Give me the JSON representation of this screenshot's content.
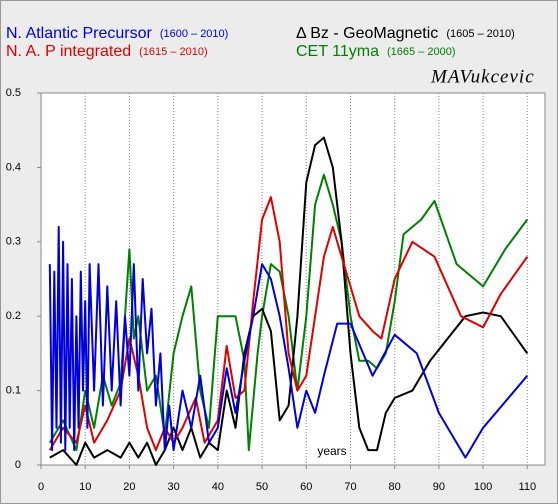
{
  "chart_data": {
    "type": "line",
    "signature": "MAVukcevic",
    "annotation": "years",
    "xlim": [
      0,
      114
    ],
    "ylim": [
      0,
      0.5
    ],
    "xticks": [
      0,
      10,
      20,
      30,
      40,
      50,
      60,
      70,
      80,
      90,
      100,
      110
    ],
    "yticks": [
      0,
      0.1,
      0.2,
      0.3,
      0.4,
      0.5
    ],
    "grid": "x",
    "series": [
      {
        "name": "N. Atlantic Precursor",
        "period": "(1600 – 2010)",
        "color": "#0000dd",
        "x": [
          2,
          2.5,
          3,
          3.5,
          4,
          4.5,
          5,
          5.5,
          6,
          6.5,
          7,
          7.5,
          8,
          8.5,
          9,
          9.5,
          10,
          10.5,
          11,
          12,
          13,
          14,
          15,
          16,
          17,
          18,
          19,
          20,
          21,
          22,
          23,
          24,
          25,
          26,
          27,
          28,
          29,
          30,
          32,
          34,
          36,
          38,
          40,
          42,
          44,
          46,
          48,
          50,
          52,
          54,
          56,
          58,
          60,
          62,
          64,
          67,
          70,
          75,
          80,
          85,
          90,
          96,
          100,
          110
        ],
        "values": [
          0.27,
          0.02,
          0.26,
          0.05,
          0.32,
          0.03,
          0.3,
          0.02,
          0.27,
          0.05,
          0.25,
          0.02,
          0.2,
          0.05,
          0.26,
          0.1,
          0.22,
          0.05,
          0.27,
          0.1,
          0.27,
          0.08,
          0.24,
          0.1,
          0.22,
          0.08,
          0.2,
          0.12,
          0.27,
          0.1,
          0.25,
          0.15,
          0.21,
          0.08,
          0.15,
          0.02,
          0.08,
          0.02,
          0.1,
          0.05,
          0.12,
          0.03,
          0.05,
          0.13,
          0.07,
          0.14,
          0.2,
          0.27,
          0.25,
          0.2,
          0.13,
          0.05,
          0.1,
          0.07,
          0.12,
          0.19,
          0.19,
          0.12,
          0.175,
          0.15,
          0.07,
          0.01,
          0.05,
          0.12
        ]
      },
      {
        "name": "N. A. P integrated",
        "period": "(1615 – 2010)",
        "color": "#e00000",
        "x": [
          2,
          5,
          8,
          10,
          12,
          15,
          18,
          20,
          22,
          24,
          26,
          28,
          30,
          32,
          35,
          37,
          40,
          42,
          44,
          46,
          48,
          50,
          52,
          54,
          56,
          58,
          60,
          62,
          64,
          66,
          68,
          70,
          72,
          75,
          77,
          80,
          84,
          89,
          95,
          100,
          104,
          110
        ],
        "values": [
          0.02,
          0.05,
          0.03,
          0.08,
          0.03,
          0.06,
          0.1,
          0.17,
          0.12,
          0.05,
          0.02,
          0.05,
          0.03,
          0.05,
          0.09,
          0.03,
          0.06,
          0.16,
          0.09,
          0.1,
          0.22,
          0.33,
          0.36,
          0.3,
          0.15,
          0.1,
          0.12,
          0.2,
          0.28,
          0.32,
          0.28,
          0.24,
          0.2,
          0.18,
          0.17,
          0.25,
          0.3,
          0.28,
          0.2,
          0.185,
          0.23,
          0.28
        ]
      },
      {
        "name": "Δ Bz - GeoMagnetic",
        "period": "(1605 – 2010)",
        "color": "#000000",
        "x": [
          2,
          5,
          8,
          10,
          12,
          15,
          18,
          20,
          22,
          24,
          26,
          28,
          30,
          32,
          34,
          36,
          38,
          40,
          42,
          44,
          46,
          48,
          50,
          52,
          54,
          56,
          58,
          60,
          62,
          64,
          66,
          68,
          70,
          72,
          74,
          76,
          78,
          80,
          84,
          88,
          92,
          96,
          100,
          104,
          110
        ],
        "values": [
          0.01,
          0.02,
          0,
          0.03,
          0.01,
          0.02,
          0.01,
          0.03,
          0.01,
          0.03,
          0,
          0.02,
          0.05,
          0.02,
          0.05,
          0.01,
          0.03,
          0.02,
          0.1,
          0.05,
          0.15,
          0.2,
          0.21,
          0.18,
          0.06,
          0.08,
          0.2,
          0.38,
          0.43,
          0.44,
          0.4,
          0.3,
          0.15,
          0.05,
          0.02,
          0.02,
          0.07,
          0.09,
          0.1,
          0.14,
          0.17,
          0.2,
          0.205,
          0.2,
          0.15
        ]
      },
      {
        "name": "CET 11yma",
        "period": "(1665 – 2000)",
        "color": "#008000",
        "x": [
          2,
          5,
          8,
          10,
          12,
          14,
          16,
          18,
          19,
          20,
          21,
          22,
          24,
          26,
          28,
          30,
          32,
          34,
          36,
          38,
          40,
          42,
          44,
          46,
          47,
          49,
          50,
          52,
          54,
          56,
          58,
          60,
          62,
          64,
          66,
          68,
          70,
          72,
          74,
          76,
          78,
          80,
          82,
          86,
          89,
          94,
          100,
          105,
          110
        ],
        "values": [
          0.03,
          0.06,
          0.02,
          0.1,
          0.05,
          0.12,
          0.08,
          0.11,
          0.2,
          0.29,
          0.17,
          0.2,
          0.1,
          0.12,
          0.04,
          0.15,
          0.2,
          0.24,
          0.1,
          0.05,
          0.2,
          0.2,
          0.2,
          0.14,
          0.02,
          0.15,
          0.2,
          0.27,
          0.26,
          0.2,
          0.1,
          0.2,
          0.35,
          0.39,
          0.35,
          0.3,
          0.2,
          0.14,
          0.14,
          0.13,
          0.15,
          0.22,
          0.31,
          0.33,
          0.355,
          0.27,
          0.24,
          0.29,
          0.33
        ]
      }
    ]
  }
}
